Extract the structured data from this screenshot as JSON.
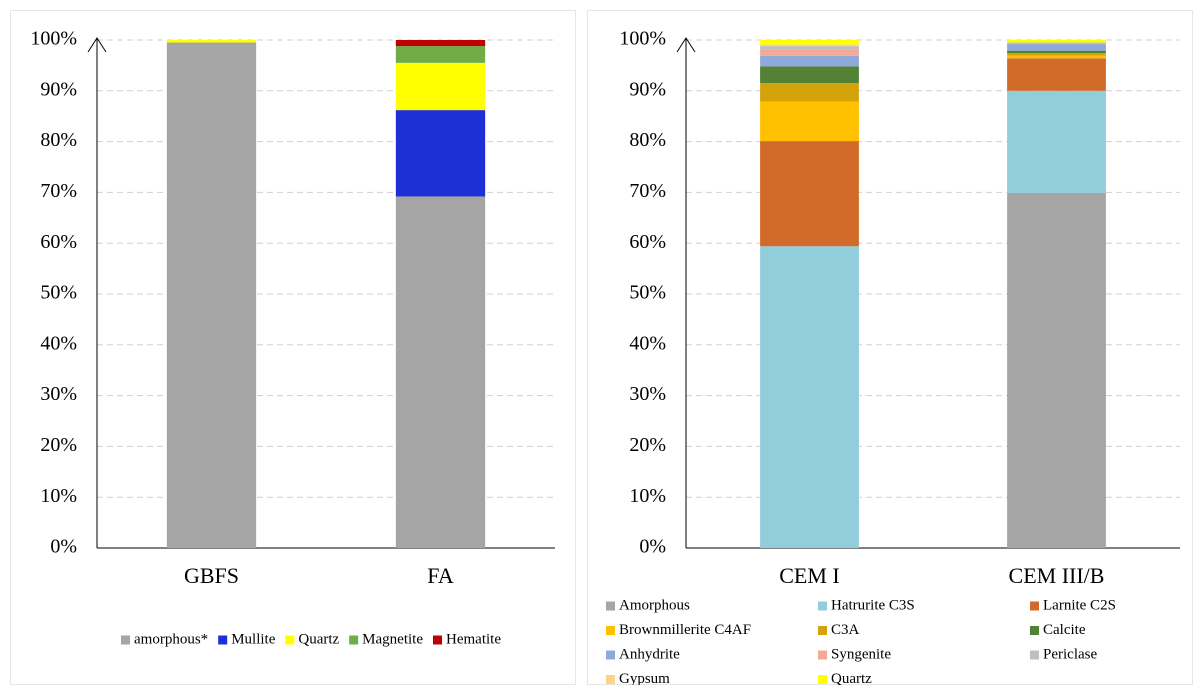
{
  "chart_data": [
    {
      "type": "bar",
      "stacked": true,
      "categories": [
        "GBFS",
        "FA"
      ],
      "series": [
        {
          "name": "amorphous*",
          "color": "#a5a5a5",
          "values": [
            99.5,
            69.2
          ]
        },
        {
          "name": "Mullite",
          "color": "#1f2fd6",
          "values": [
            0,
            17
          ]
        },
        {
          "name": "Quartz",
          "color": "#ffff00",
          "values": [
            0.5,
            9.3
          ]
        },
        {
          "name": "Magnetite",
          "color": "#70ad47",
          "values": [
            0,
            3.3
          ]
        },
        {
          "name": "Hematite",
          "color": "#c00000",
          "values": [
            0,
            1.2
          ]
        }
      ],
      "ylim": [
        0,
        100
      ],
      "yticks": [
        {
          "value": 0,
          "label": "0%"
        },
        {
          "value": 10,
          "label": "10%"
        },
        {
          "value": 20,
          "label": "20%"
        },
        {
          "value": 30,
          "label": "30%"
        },
        {
          "value": 40,
          "label": "40%"
        },
        {
          "value": 50,
          "label": "50%"
        },
        {
          "value": 60,
          "label": "60%"
        },
        {
          "value": 70,
          "label": "70%"
        },
        {
          "value": 80,
          "label": "80%"
        },
        {
          "value": 90,
          "label": "90%"
        },
        {
          "value": 100,
          "label": "100%"
        }
      ],
      "grid": true,
      "legend": "bottom"
    },
    {
      "type": "bar",
      "stacked": true,
      "categories": [
        "CEM I",
        "CEM III/B"
      ],
      "series": [
        {
          "name": "Amorphous",
          "color": "#a5a5a5",
          "values": [
            0,
            69.9
          ]
        },
        {
          "name": "Hatrurite C3S",
          "color": "#92cddc",
          "values": [
            59.4,
            20.1
          ]
        },
        {
          "name": "Larnite C2S",
          "color": "#d26b2a",
          "values": [
            20.7,
            6.4
          ]
        },
        {
          "name": "Brownmillerite C4AF",
          "color": "#ffc000",
          "values": [
            7.8,
            0.5
          ]
        },
        {
          "name": "C3A",
          "color": "#d4a30a",
          "values": [
            3.6,
            0.5
          ]
        },
        {
          "name": "Calcite",
          "color": "#548235",
          "values": [
            3.3,
            0.5
          ]
        },
        {
          "name": "Anhydrite",
          "color": "#8ea9db",
          "values": [
            2.1,
            1.3
          ]
        },
        {
          "name": "Syngenite",
          "color": "#f4a896",
          "values": [
            1.3,
            0
          ]
        },
        {
          "name": "Periclase",
          "color": "#bfbfbf",
          "values": [
            0.6,
            0.3
          ]
        },
        {
          "name": "Gypsum",
          "color": "#ffd28a",
          "values": [
            0.3,
            0
          ]
        },
        {
          "name": "Quartz",
          "color": "#ffff00",
          "values": [
            0.9,
            0.5
          ]
        }
      ],
      "ylim": [
        0,
        100
      ],
      "yticks": [
        {
          "value": 0,
          "label": "0%"
        },
        {
          "value": 10,
          "label": "10%"
        },
        {
          "value": 20,
          "label": "20%"
        },
        {
          "value": 30,
          "label": "30%"
        },
        {
          "value": 40,
          "label": "40%"
        },
        {
          "value": 50,
          "label": "50%"
        },
        {
          "value": 60,
          "label": "60%"
        },
        {
          "value": 70,
          "label": "70%"
        },
        {
          "value": 80,
          "label": "80%"
        },
        {
          "value": 90,
          "label": "90%"
        },
        {
          "value": 100,
          "label": "100%"
        }
      ],
      "grid": true,
      "legend": "bottom"
    }
  ]
}
